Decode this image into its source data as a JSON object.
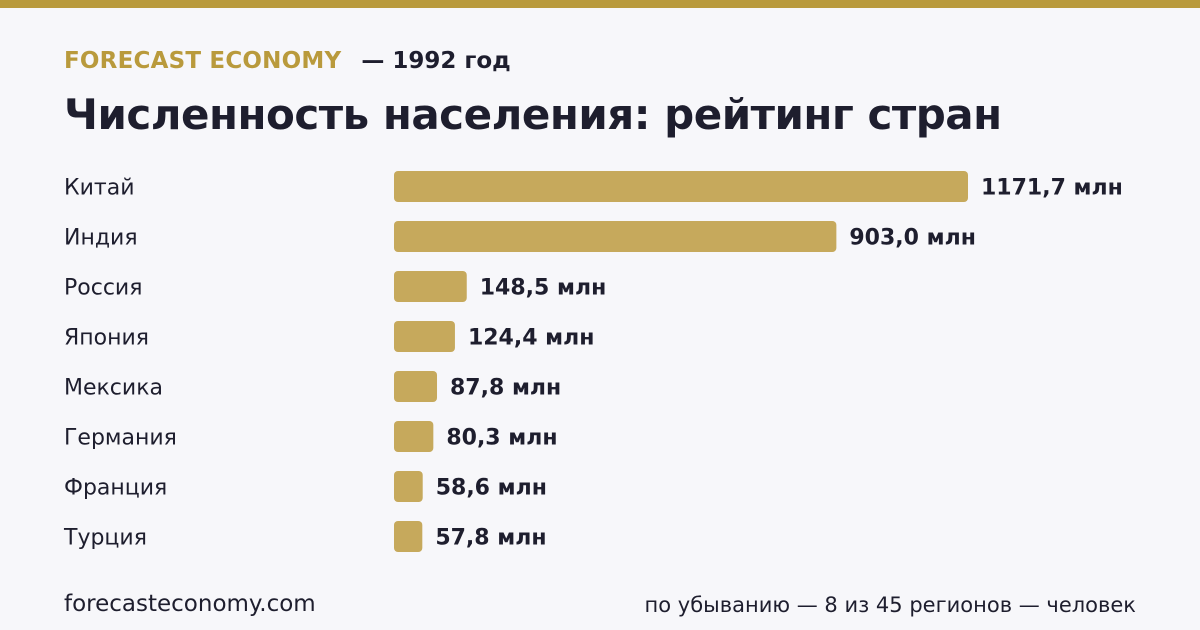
{
  "header": {
    "brand": "FORECAST ECONOMY",
    "period": "— 1992 год",
    "title": "Численность населения: рейтинг стран"
  },
  "colors": {
    "accent": "#b99a3c",
    "bar": "#c6a95c",
    "text": "#1e1e2e",
    "background": "#f7f7fa"
  },
  "chart_data": {
    "type": "bar",
    "orientation": "horizontal",
    "title": "Численность населения: рейтинг стран",
    "categories": [
      "Китай",
      "Индия",
      "Россия",
      "Япония",
      "Мексика",
      "Германия",
      "Франция",
      "Турция"
    ],
    "values": [
      1171.7,
      903.0,
      148.5,
      124.4,
      87.8,
      80.3,
      58.6,
      57.8
    ],
    "value_labels": [
      "1171,7 млн",
      "903,0 млн",
      "148,5 млн",
      "124,4 млн",
      "87,8 млн",
      "80,3 млн",
      "58,6 млн",
      "57,8 млн"
    ],
    "xlabel": "",
    "ylabel": "",
    "grid": false,
    "legend": "none"
  },
  "footer": {
    "source": "forecasteconomy.com",
    "note": "по убыванию — 8 из 45 регионов — человек"
  }
}
